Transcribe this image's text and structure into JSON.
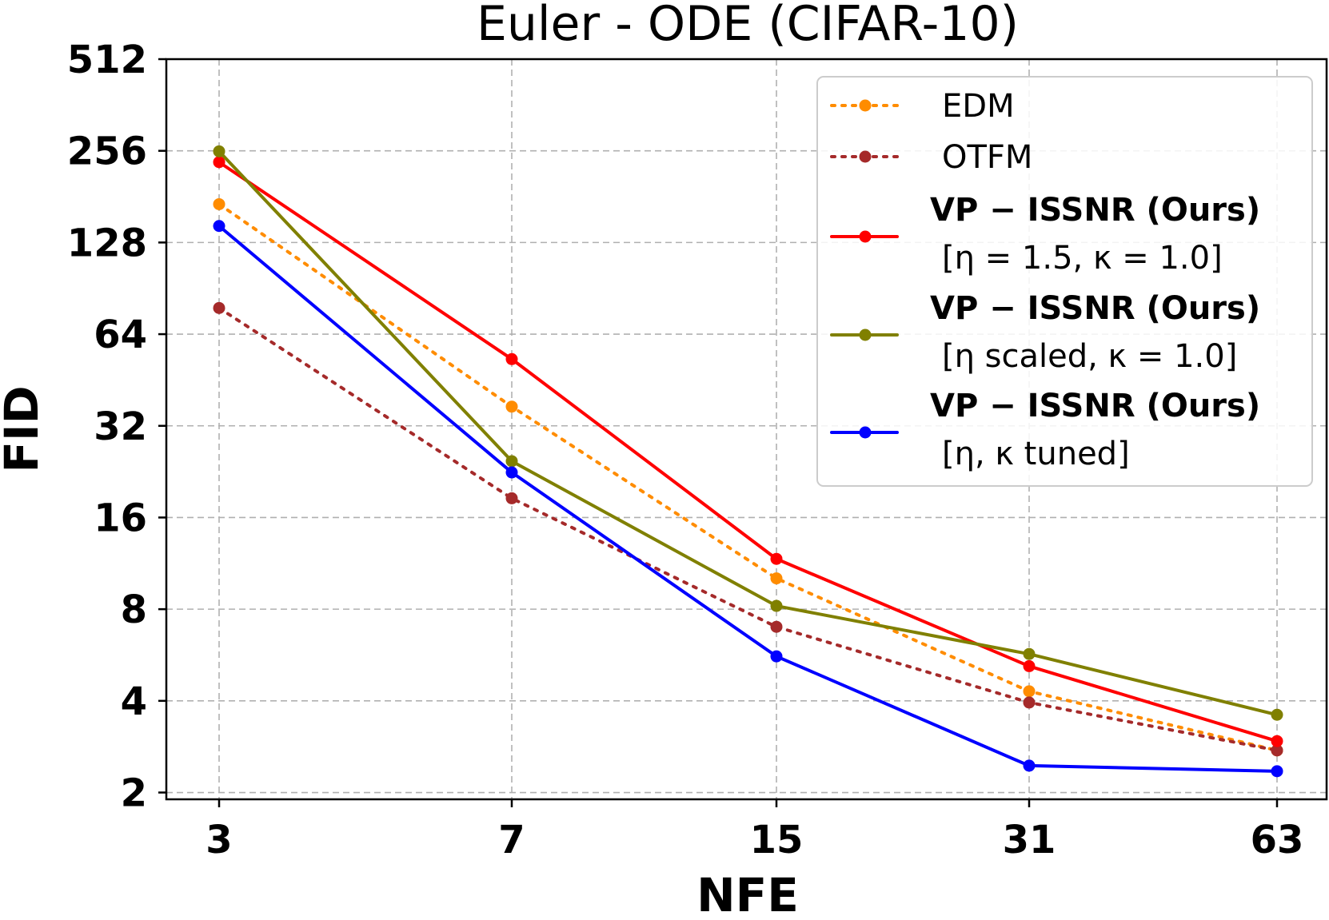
{
  "chart_data": {
    "type": "line",
    "title": "Euler - ODE (CIFAR-10)",
    "xlabel": "NFE",
    "ylabel": "FID",
    "x": [
      3,
      7,
      15,
      31,
      63
    ],
    "x_tick_labels": [
      "3",
      "7",
      "15",
      "31",
      "63"
    ],
    "y_scale": "log2",
    "ylim": [
      1.9,
      512
    ],
    "y_ticks": [
      2,
      4,
      8,
      16,
      32,
      64,
      128,
      256,
      512
    ],
    "y_tick_labels": [
      "2",
      "4",
      "8",
      "16",
      "32",
      "64",
      "128",
      "256",
      "512"
    ],
    "grid": true,
    "legend_position": "top-right",
    "series": [
      {
        "name": "EDM",
        "legend": [
          "EDM"
        ],
        "color": "#ff8c00",
        "style": "dotted",
        "values": [
          171,
          37,
          10.1,
          4.3,
          2.75
        ]
      },
      {
        "name": "OTFM",
        "legend": [
          "OTFM"
        ],
        "color": "#a52a2a",
        "style": "dotted",
        "values": [
          78,
          18.5,
          7.0,
          3.95,
          2.75
        ]
      },
      {
        "name": "VP-ISSNR (Ours) [η = 1.5, κ = 1.0]",
        "legend": [
          "VP − ISSNR (Ours)",
          "[η = 1.5, κ = 1.0]"
        ],
        "color": "#ff0000",
        "style": "solid",
        "values": [
          235,
          53,
          11.7,
          5.2,
          2.95
        ]
      },
      {
        "name": "VP-ISSNR (Ours) [η scaled, κ = 1.0]",
        "legend": [
          "VP − ISSNR (Ours)",
          "[η scaled, κ = 1.0]"
        ],
        "color": "#808000",
        "style": "solid",
        "values": [
          255,
          24.5,
          8.2,
          5.7,
          3.6
        ]
      },
      {
        "name": "VP-ISSNR (Ours) [η, κ tuned]",
        "legend": [
          "VP − ISSNR (Ours)",
          "[η, κ tuned]"
        ],
        "color": "#0000ff",
        "style": "solid",
        "values": [
          145,
          22.5,
          5.6,
          2.45,
          2.35
        ]
      }
    ]
  }
}
